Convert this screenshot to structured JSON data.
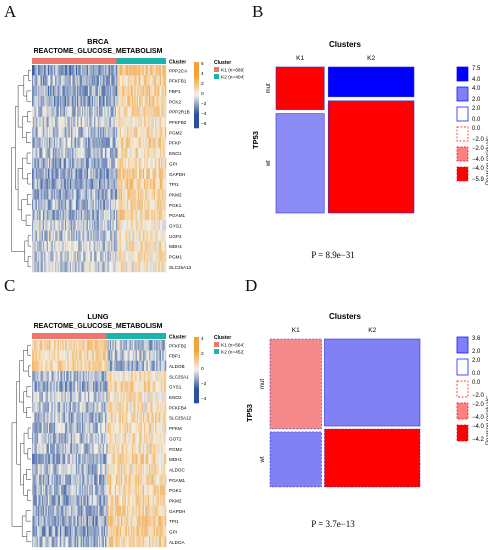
{
  "panel_labels": [
    "A",
    "B",
    "C",
    "D"
  ],
  "chart_data": [
    {
      "type": "heatmap",
      "panel": "A",
      "title": "BRCA",
      "subtitle": "REACTOME_GLUCOSE_METABOLISM",
      "genes": [
        "PPP2CA",
        "PFKFB1",
        "FBP1",
        "PCK2",
        "PPP2R1B",
        "PFKFB2",
        "PGM2",
        "PFKP",
        "ENO1",
        "GPI",
        "GAPDH",
        "TPI1",
        "PKM2",
        "PGK1",
        "PGAM1",
        "GYG1",
        "UGP2",
        "MDH1",
        "PGM1",
        "SLC25A13"
      ],
      "annotation_title": "Cluster",
      "clusters": [
        {
          "label": "K1 (n=689)",
          "color": "#ef766f",
          "n": 689
        },
        {
          "label": "K2 (n=404)",
          "color": "#19b4ac",
          "n": 404
        }
      ],
      "colorbar": {
        "ticks": [
          "6",
          "4",
          "2",
          "0",
          "−2",
          "−4",
          "−6"
        ],
        "range": [
          -6,
          6
        ]
      },
      "gene_bias": [
        -0.7,
        -0.5,
        -0.6,
        -0.6,
        -0.4,
        -0.3,
        -0.4,
        -0.5,
        -0.4,
        -0.5,
        -0.6,
        -0.6,
        -0.5,
        -0.5,
        -0.5,
        -0.3,
        -0.3,
        -0.3,
        -0.3,
        -0.2
      ]
    },
    {
      "type": "mosaic",
      "panel": "B",
      "title": "Clusters",
      "x_categories": [
        "K1",
        "K2"
      ],
      "ylabel": "TP53",
      "y_categories": [
        "mut",
        "wt"
      ],
      "column_widths": [
        0.36,
        0.64
      ],
      "cells": [
        {
          "col": "K1",
          "row": "mut",
          "height": 0.3,
          "fill": "#ff0000",
          "border": "solid"
        },
        {
          "col": "K1",
          "row": "wt",
          "height": 0.7,
          "fill": "#8b8bf5",
          "border": "solid"
        },
        {
          "col": "K2",
          "row": "mut",
          "height": 0.21,
          "fill": "#0000ff",
          "border": "solid"
        },
        {
          "col": "K2",
          "row": "wt",
          "height": 0.79,
          "fill": "#ff0000",
          "border": "solid"
        }
      ],
      "legend_title": "Pearson residuals:",
      "legend": [
        {
          "hi": "7.5",
          "lo": "4.0",
          "fill": "#0000ff",
          "border": "solid"
        },
        {
          "hi": "4.0",
          "lo": "2.0",
          "fill": "#8080ff",
          "border": "solid"
        },
        {
          "hi": "2.0",
          "lo": "0.0",
          "fill": "#ffffff",
          "stroke": "#0000ff",
          "border": "solid"
        },
        {
          "hi": "0.0",
          "lo": "−2.0",
          "fill": "#ffffff",
          "stroke": "#ff0000",
          "border": "dashed"
        },
        {
          "hi": "−2.0",
          "lo": "−4.0",
          "fill": "#ff8080",
          "border": "dashed"
        },
        {
          "hi": "−4.0",
          "lo": "−5.9",
          "fill": "#ff0000",
          "border": "dashed"
        }
      ],
      "p_value": "P = 8.9e−31"
    },
    {
      "type": "heatmap",
      "panel": "C",
      "title": "LUNG",
      "subtitle": "REACTOME_GLUCOSE_METABOLISM",
      "genes": [
        "PFKFB2",
        "FBP1",
        "ALDOB",
        "SLC25A1",
        "GYS1",
        "ENO2",
        "PFKFB4",
        "SLC25A12",
        "PFKM",
        "GOT2",
        "PGM2",
        "MDH1",
        "ALDOC",
        "PGAM1",
        "PGK1",
        "PKM2",
        "GAPDH",
        "TPI1",
        "GPI",
        "ALDOA"
      ],
      "annotation_title": "Cluster",
      "clusters": [
        {
          "label": "K1 (n=564)",
          "color": "#ef766f",
          "n": 564
        },
        {
          "label": "K2 (n=452)",
          "color": "#19b4ac",
          "n": 452
        }
      ],
      "colorbar": {
        "ticks": [
          "4",
          "2",
          "0",
          "−2",
          "−4"
        ],
        "range": [
          -4,
          4
        ]
      },
      "gene_bias": [
        0.5,
        0.4,
        0.5,
        -0.4,
        -0.5,
        -0.3,
        -0.3,
        -0.5,
        -0.4,
        -0.4,
        -0.4,
        -0.5,
        -0.4,
        -0.5,
        -0.5,
        -0.5,
        -0.5,
        -0.6,
        -0.6,
        -0.5
      ]
    },
    {
      "type": "mosaic",
      "panel": "D",
      "title": "Clusters",
      "x_categories": [
        "K1",
        "K2"
      ],
      "ylabel": "TP53",
      "y_categories": [
        "mut",
        "wt"
      ],
      "column_widths": [
        0.35,
        0.65
      ],
      "cells": [
        {
          "col": "K1",
          "row": "mut",
          "height": 0.62,
          "fill": "#f68a8a",
          "border": "dashed"
        },
        {
          "col": "K1",
          "row": "wt",
          "height": 0.38,
          "fill": "#8181f3",
          "border": "dashed"
        },
        {
          "col": "K2",
          "row": "mut",
          "height": 0.6,
          "fill": "#8181f3",
          "border": "solid"
        },
        {
          "col": "K2",
          "row": "wt",
          "height": 0.4,
          "fill": "#ff0000",
          "border": "dashed"
        }
      ],
      "legend_title": "Pearson residuals:",
      "legend": [
        {
          "hi": "3.6",
          "lo": "2.0",
          "fill": "#8080ff",
          "border": "solid"
        },
        {
          "hi": "2.0",
          "lo": "0.0",
          "fill": "#ffffff",
          "stroke": "#0000ff",
          "border": "solid"
        },
        {
          "hi": "0.0",
          "lo": "−2.0",
          "fill": "#ffffff",
          "stroke": "#ff0000",
          "border": "dashed"
        },
        {
          "hi": "−2.0",
          "lo": "−4.0",
          "fill": "#ff8080",
          "border": "dashed"
        },
        {
          "hi": "−4.0",
          "lo": "−4.2",
          "fill": "#ff0000",
          "border": "dashed"
        }
      ],
      "p_value": "P = 3.7e−13"
    }
  ]
}
